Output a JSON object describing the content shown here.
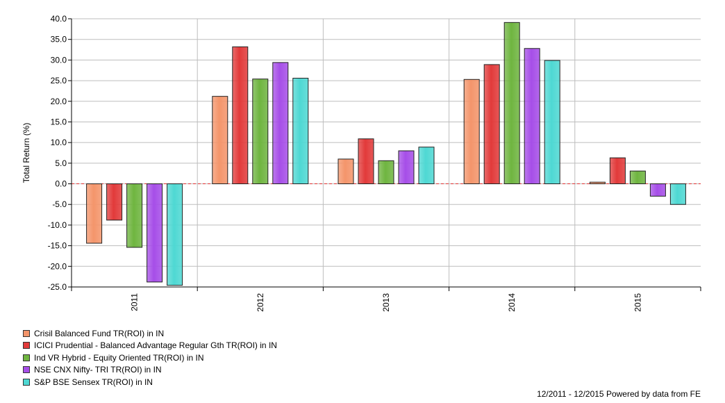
{
  "chart_data": {
    "type": "bar",
    "title": "",
    "xlabel": "",
    "ylabel": "Total Return (%)",
    "ylim": [
      -25,
      40
    ],
    "ytick_step": 5,
    "yticks": [
      "-25.0",
      "-20.0",
      "-15.0",
      "-10.0",
      "-5.0",
      "0.0",
      "5.0",
      "10.0",
      "15.0",
      "20.0",
      "25.0",
      "30.0",
      "35.0",
      "40.0"
    ],
    "categories": [
      "2011",
      "2012",
      "2013",
      "2014",
      "2015"
    ],
    "grid": true,
    "legend_position": "bottom-left",
    "zero_line": "red dashed",
    "series": [
      {
        "name": "Crisil Balanced Fund TR(ROI) in IN",
        "color": "#f4956b",
        "values": [
          -14.4,
          21.2,
          6.0,
          25.3,
          0.4
        ]
      },
      {
        "name": "ICICI Prudential - Balanced Advantage Regular Gth TR(ROI) in IN",
        "color": "#e23a3a",
        "values": [
          -8.8,
          33.2,
          10.9,
          28.9,
          6.3
        ]
      },
      {
        "name": "Ind VR Hybrid - Equity Oriented TR(ROI) in IN",
        "color": "#6fb540",
        "values": [
          -15.4,
          25.4,
          5.6,
          39.1,
          3.1
        ]
      },
      {
        "name": "NSE CNX Nifty- TRI TR(ROI) in IN",
        "color": "#a64ee8",
        "values": [
          -23.8,
          29.4,
          8.0,
          32.8,
          -3.0
        ]
      },
      {
        "name": "S&P BSE Sensex TR(ROI) in IN",
        "color": "#4ed8d3",
        "values": [
          -24.6,
          25.6,
          8.9,
          29.9,
          -5.0
        ]
      }
    ]
  },
  "footer": {
    "note": "12/2011 - 12/2015 Powered by data from FE"
  }
}
